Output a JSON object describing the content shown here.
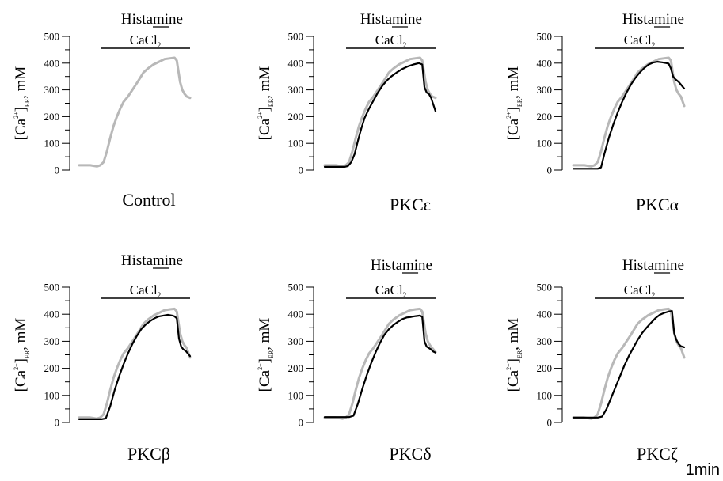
{
  "figure": {
    "scale_bar_label": "1min"
  },
  "chart_data": [
    {
      "type": "line",
      "panel_label": "Control",
      "stimulus_label": "Histamine",
      "bath_label": "CaCl",
      "bath_subscript": "2",
      "ylabel_main": "[Ca",
      "ylabel_sup": "2+",
      "ylabel_sub": "ER",
      "ylabel_unit": ", mM",
      "yticks": [
        0,
        100,
        200,
        300,
        400,
        500
      ],
      "ylim": [
        0,
        500
      ],
      "xlim": [
        0,
        100
      ],
      "grid": false,
      "colors": {
        "control": "#b8b8b8",
        "treated": "#000000"
      },
      "series": [
        {
          "role": "control",
          "x": [
            0,
            10,
            16,
            19,
            22,
            25,
            28,
            31,
            34,
            37,
            40,
            44,
            48,
            52,
            55,
            58,
            62,
            67,
            72,
            77,
            82,
            86,
            88,
            91,
            93,
            95,
            97,
            100
          ],
          "values": [
            18,
            18,
            14,
            18,
            30,
            70,
            120,
            165,
            200,
            230,
            255,
            275,
            300,
            325,
            345,
            365,
            380,
            395,
            405,
            415,
            418,
            420,
            410,
            330,
            300,
            285,
            275,
            270
          ]
        }
      ]
    },
    {
      "type": "line",
      "panel_label": "PKCε",
      "stimulus_label": "Histamine",
      "bath_label": "CaCl",
      "bath_subscript": "2",
      "ylabel_main": "[Ca",
      "ylabel_sup": "2+",
      "ylabel_sub": "ER",
      "ylabel_unit": ", mM",
      "yticks": [
        0,
        100,
        200,
        300,
        400,
        500
      ],
      "ylim": [
        0,
        500
      ],
      "xlim": [
        0,
        100
      ],
      "grid": false,
      "colors": {
        "control": "#b8b8b8",
        "treated": "#000000"
      },
      "series": [
        {
          "role": "control",
          "x": [
            0,
            10,
            16,
            19,
            22,
            25,
            28,
            31,
            34,
            37,
            40,
            44,
            48,
            52,
            55,
            58,
            62,
            67,
            72,
            77,
            82,
            86,
            88,
            91,
            93,
            95,
            97,
            100
          ],
          "values": [
            18,
            18,
            14,
            18,
            30,
            70,
            120,
            165,
            200,
            230,
            255,
            275,
            300,
            325,
            345,
            365,
            380,
            395,
            405,
            415,
            418,
            420,
            410,
            330,
            300,
            285,
            275,
            270
          ]
        },
        {
          "role": "treated",
          "x": [
            0,
            12,
            18,
            21,
            24,
            27,
            30,
            33,
            36,
            40,
            44,
            48,
            52,
            56,
            60,
            65,
            70,
            75,
            80,
            85,
            88,
            90,
            92,
            94,
            96,
            98,
            100
          ],
          "values": [
            12,
            12,
            12,
            15,
            30,
            60,
            110,
            155,
            195,
            230,
            260,
            290,
            315,
            335,
            350,
            365,
            378,
            388,
            395,
            400,
            395,
            310,
            290,
            285,
            270,
            245,
            220
          ]
        }
      ]
    },
    {
      "type": "line",
      "panel_label": "PKCα",
      "stimulus_label": "Histamine",
      "bath_label": "CaCl",
      "bath_subscript": "2",
      "ylabel_main": "[Ca",
      "ylabel_sup": "2+",
      "ylabel_sub": "ER",
      "ylabel_unit": ", mM",
      "yticks": [
        0,
        100,
        200,
        300,
        400,
        500
      ],
      "ylim": [
        0,
        500
      ],
      "xlim": [
        0,
        100
      ],
      "grid": false,
      "colors": {
        "control": "#b8b8b8",
        "treated": "#000000"
      },
      "series": [
        {
          "role": "control",
          "x": [
            0,
            10,
            16,
            19,
            22,
            25,
            28,
            31,
            34,
            37,
            40,
            44,
            48,
            52,
            55,
            58,
            62,
            67,
            72,
            77,
            82,
            86,
            88,
            91,
            93,
            95,
            97,
            100
          ],
          "values": [
            18,
            18,
            14,
            18,
            30,
            70,
            120,
            165,
            200,
            230,
            255,
            275,
            300,
            325,
            345,
            365,
            380,
            395,
            405,
            415,
            418,
            420,
            410,
            330,
            300,
            285,
            275,
            240
          ]
        },
        {
          "role": "treated",
          "x": [
            0,
            16,
            22,
            25,
            28,
            32,
            36,
            40,
            44,
            48,
            52,
            56,
            60,
            64,
            68,
            72,
            76,
            80,
            84,
            86,
            88,
            90,
            92,
            95,
            98,
            100
          ],
          "values": [
            5,
            5,
            5,
            10,
            60,
            120,
            170,
            215,
            255,
            290,
            320,
            345,
            365,
            382,
            395,
            402,
            405,
            403,
            400,
            398,
            380,
            350,
            340,
            330,
            315,
            305
          ]
        }
      ]
    },
    {
      "type": "line",
      "panel_label": "PKCβ",
      "stimulus_label": "Histamine",
      "bath_label": "CaCl",
      "bath_subscript": "2",
      "ylabel_main": "[Ca",
      "ylabel_sup": "2+",
      "ylabel_sub": "ER",
      "ylabel_unit": ", mM",
      "yticks": [
        0,
        100,
        200,
        300,
        400,
        500
      ],
      "ylim": [
        0,
        500
      ],
      "xlim": [
        0,
        100
      ],
      "grid": false,
      "colors": {
        "control": "#b8b8b8",
        "treated": "#000000"
      },
      "series": [
        {
          "role": "control",
          "x": [
            0,
            10,
            16,
            19,
            22,
            25,
            28,
            31,
            34,
            37,
            40,
            44,
            48,
            52,
            55,
            58,
            62,
            67,
            72,
            77,
            82,
            86,
            88,
            91,
            93,
            95,
            97,
            100
          ],
          "values": [
            18,
            18,
            14,
            18,
            30,
            70,
            120,
            165,
            200,
            230,
            255,
            275,
            300,
            325,
            345,
            365,
            380,
            395,
            405,
            415,
            418,
            420,
            410,
            330,
            300,
            285,
            275,
            240
          ]
        },
        {
          "role": "treated",
          "x": [
            0,
            12,
            20,
            24,
            28,
            32,
            36,
            40,
            44,
            48,
            52,
            56,
            60,
            64,
            68,
            72,
            76,
            80,
            84,
            86,
            88,
            90,
            92,
            94,
            96,
            98,
            100
          ],
          "values": [
            12,
            12,
            12,
            15,
            60,
            120,
            170,
            215,
            255,
            290,
            320,
            345,
            362,
            375,
            385,
            392,
            395,
            398,
            395,
            392,
            385,
            310,
            280,
            270,
            265,
            255,
            245
          ]
        }
      ]
    },
    {
      "type": "line",
      "panel_label": "PKCδ",
      "stimulus_label": "Histamine",
      "bath_label": "CaCl",
      "bath_subscript": "2",
      "ylabel_main": "[Ca",
      "ylabel_sup": "2+",
      "ylabel_sub": "ER",
      "ylabel_unit": ", mM",
      "yticks": [
        0,
        100,
        200,
        300,
        400,
        500
      ],
      "ylim": [
        0,
        500
      ],
      "xlim": [
        0,
        100
      ],
      "grid": false,
      "colors": {
        "control": "#b8b8b8",
        "treated": "#000000"
      },
      "series": [
        {
          "role": "control",
          "x": [
            0,
            10,
            16,
            19,
            22,
            25,
            28,
            31,
            34,
            37,
            40,
            44,
            48,
            52,
            55,
            58,
            62,
            67,
            72,
            77,
            82,
            86,
            88,
            91,
            93,
            95,
            97,
            100
          ],
          "values": [
            18,
            18,
            14,
            18,
            30,
            70,
            120,
            165,
            200,
            230,
            255,
            275,
            300,
            325,
            345,
            365,
            380,
            395,
            405,
            415,
            418,
            420,
            410,
            330,
            300,
            285,
            275,
            260
          ]
        },
        {
          "role": "treated",
          "x": [
            0,
            12,
            22,
            26,
            30,
            34,
            38,
            42,
            46,
            50,
            54,
            58,
            62,
            66,
            70,
            74,
            78,
            82,
            86,
            88,
            90,
            92,
            94,
            96,
            98,
            100
          ],
          "values": [
            20,
            20,
            20,
            25,
            70,
            125,
            175,
            220,
            260,
            295,
            325,
            345,
            360,
            372,
            382,
            388,
            390,
            393,
            395,
            390,
            300,
            280,
            275,
            270,
            262,
            258
          ]
        }
      ]
    },
    {
      "type": "line",
      "panel_label": "PKCζ",
      "stimulus_label": "Histamine",
      "bath_label": "CaCl",
      "bath_subscript": "2",
      "ylabel_main": "[Ca",
      "ylabel_sup": "2+",
      "ylabel_sub": "ER",
      "ylabel_unit": ", mM",
      "yticks": [
        0,
        100,
        200,
        300,
        400,
        500
      ],
      "ylim": [
        0,
        500
      ],
      "xlim": [
        0,
        100
      ],
      "grid": false,
      "colors": {
        "control": "#b8b8b8",
        "treated": "#000000"
      },
      "series": [
        {
          "role": "control",
          "x": [
            0,
            10,
            16,
            19,
            22,
            25,
            28,
            31,
            34,
            37,
            40,
            44,
            48,
            52,
            55,
            58,
            62,
            67,
            72,
            77,
            82,
            86,
            88,
            91,
            93,
            95,
            97,
            100
          ],
          "values": [
            18,
            18,
            14,
            18,
            30,
            70,
            120,
            165,
            200,
            230,
            255,
            275,
            300,
            325,
            345,
            365,
            380,
            395,
            405,
            415,
            418,
            420,
            410,
            330,
            300,
            285,
            275,
            240
          ]
        },
        {
          "role": "treated",
          "x": [
            0,
            16,
            22,
            26,
            30,
            34,
            38,
            42,
            46,
            50,
            54,
            58,
            62,
            66,
            70,
            74,
            78,
            82,
            86,
            89,
            91,
            93,
            95,
            97,
            100
          ],
          "values": [
            18,
            18,
            18,
            22,
            50,
            90,
            130,
            170,
            210,
            245,
            275,
            305,
            330,
            350,
            368,
            385,
            398,
            405,
            410,
            412,
            330,
            305,
            290,
            282,
            278
          ]
        }
      ]
    }
  ]
}
